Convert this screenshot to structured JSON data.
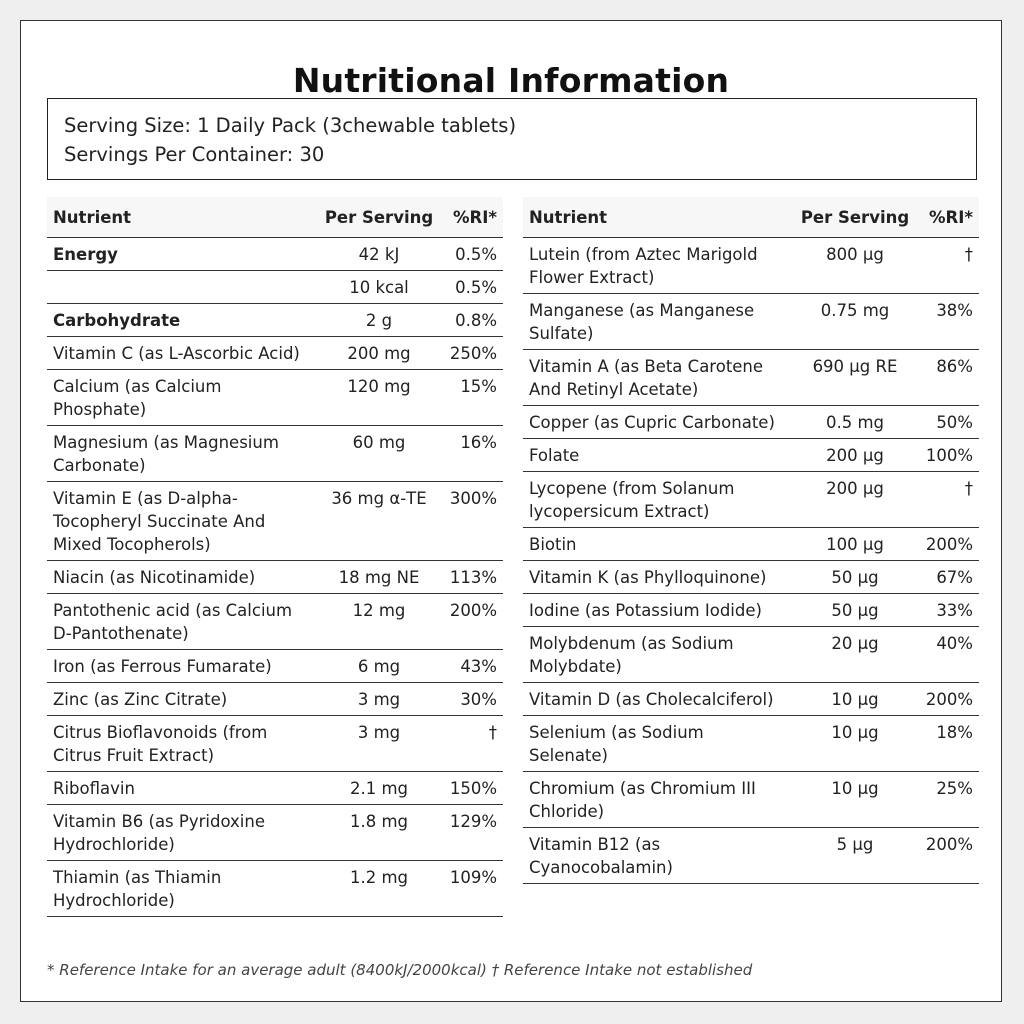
{
  "title": "Nutritional Information",
  "serving": {
    "size": "Serving Size: 1 Daily Pack (3chewable tablets)",
    "per_container": "Servings Per Container: 30"
  },
  "columns": {
    "nutrient": "Nutrient",
    "per_serving": "Per Serving",
    "ri": "%RI*"
  },
  "left_rows": [
    {
      "name": "Energy",
      "value": "42 kJ",
      "ri": "0.5%",
      "bold": true
    },
    {
      "name": "",
      "value": "10 kcal",
      "ri": "0.5%"
    },
    {
      "name": "Carbohydrate",
      "value": "2 g",
      "ri": "0.8%",
      "bold": true
    },
    {
      "name": "Vitamin C (as L-Ascorbic Acid)",
      "value": "200 mg",
      "ri": "250%"
    },
    {
      "name": "Calcium (as Calcium Phosphate)",
      "value": "120 mg",
      "ri": "15%"
    },
    {
      "name": "Magnesium (as Magnesium Carbonate)",
      "value": "60 mg",
      "ri": "16%"
    },
    {
      "name": "Vitamin E (as D-alpha-Tocopheryl Succinate And Mixed Tocopherols)",
      "value": "36 mg α-TE",
      "ri": "300%"
    },
    {
      "name": "Niacin (as Nicotinamide)",
      "value": "18 mg NE",
      "ri": "113%"
    },
    {
      "name": "Pantothenic acid (as Calcium D-Pantothenate)",
      "value": "12 mg",
      "ri": "200%"
    },
    {
      "name": "Iron (as Ferrous Fumarate)",
      "value": "6 mg",
      "ri": "43%"
    },
    {
      "name": "Zinc (as Zinc Citrate)",
      "value": "3 mg",
      "ri": "30%"
    },
    {
      "name": "Citrus Bioflavonoids (from Citrus Fruit Extract)",
      "value": "3 mg",
      "ri": "†"
    },
    {
      "name": "Riboflavin",
      "value": "2.1 mg",
      "ri": "150%"
    },
    {
      "name": "Vitamin B6 (as Pyridoxine Hydrochloride)",
      "value": "1.8 mg",
      "ri": "129%"
    },
    {
      "name": "Thiamin (as Thiamin Hydrochloride)",
      "value": "1.2 mg",
      "ri": "109%"
    }
  ],
  "right_rows": [
    {
      "name": "Lutein (from Aztec Marigold Flower Extract)",
      "value": "800 µg",
      "ri": "†"
    },
    {
      "name": "Manganese (as Manganese Sulfate)",
      "value": "0.75 mg",
      "ri": "38%"
    },
    {
      "name": "Vitamin A (as Beta Carotene And Retinyl Acetate)",
      "value": "690 µg RE",
      "ri": "86%"
    },
    {
      "name": "Copper (as Cupric Carbonate)",
      "value": "0.5 mg",
      "ri": "50%"
    },
    {
      "name": "Folate",
      "value": "200 µg",
      "ri": "100%"
    },
    {
      "name": "Lycopene (from Solanum lycopersicum Extract)",
      "value": "200 µg",
      "ri": "†"
    },
    {
      "name": "Biotin",
      "value": "100 µg",
      "ri": "200%"
    },
    {
      "name": "Vitamin K (as Phylloquinone)",
      "value": "50 µg",
      "ri": "67%"
    },
    {
      "name": "Iodine (as Potassium Iodide)",
      "value": "50 µg",
      "ri": "33%"
    },
    {
      "name": "Molybdenum (as Sodium Molybdate)",
      "value": "20 µg",
      "ri": "40%"
    },
    {
      "name": "Vitamin D (as Cholecalciferol)",
      "value": "10 µg",
      "ri": "200%"
    },
    {
      "name": "Selenium (as Sodium Selenate)",
      "value": "10 µg",
      "ri": "18%"
    },
    {
      "name": "Chromium (as Chromium III Chloride)",
      "value": "10 µg",
      "ri": "25%"
    },
    {
      "name": "Vitamin B12 (as Cyanocobalamin)",
      "value": "5 µg",
      "ri": "200%"
    }
  ],
  "footnote": "* Reference Intake for an average adult (8400kJ/2000kcal) † Reference Intake not established"
}
